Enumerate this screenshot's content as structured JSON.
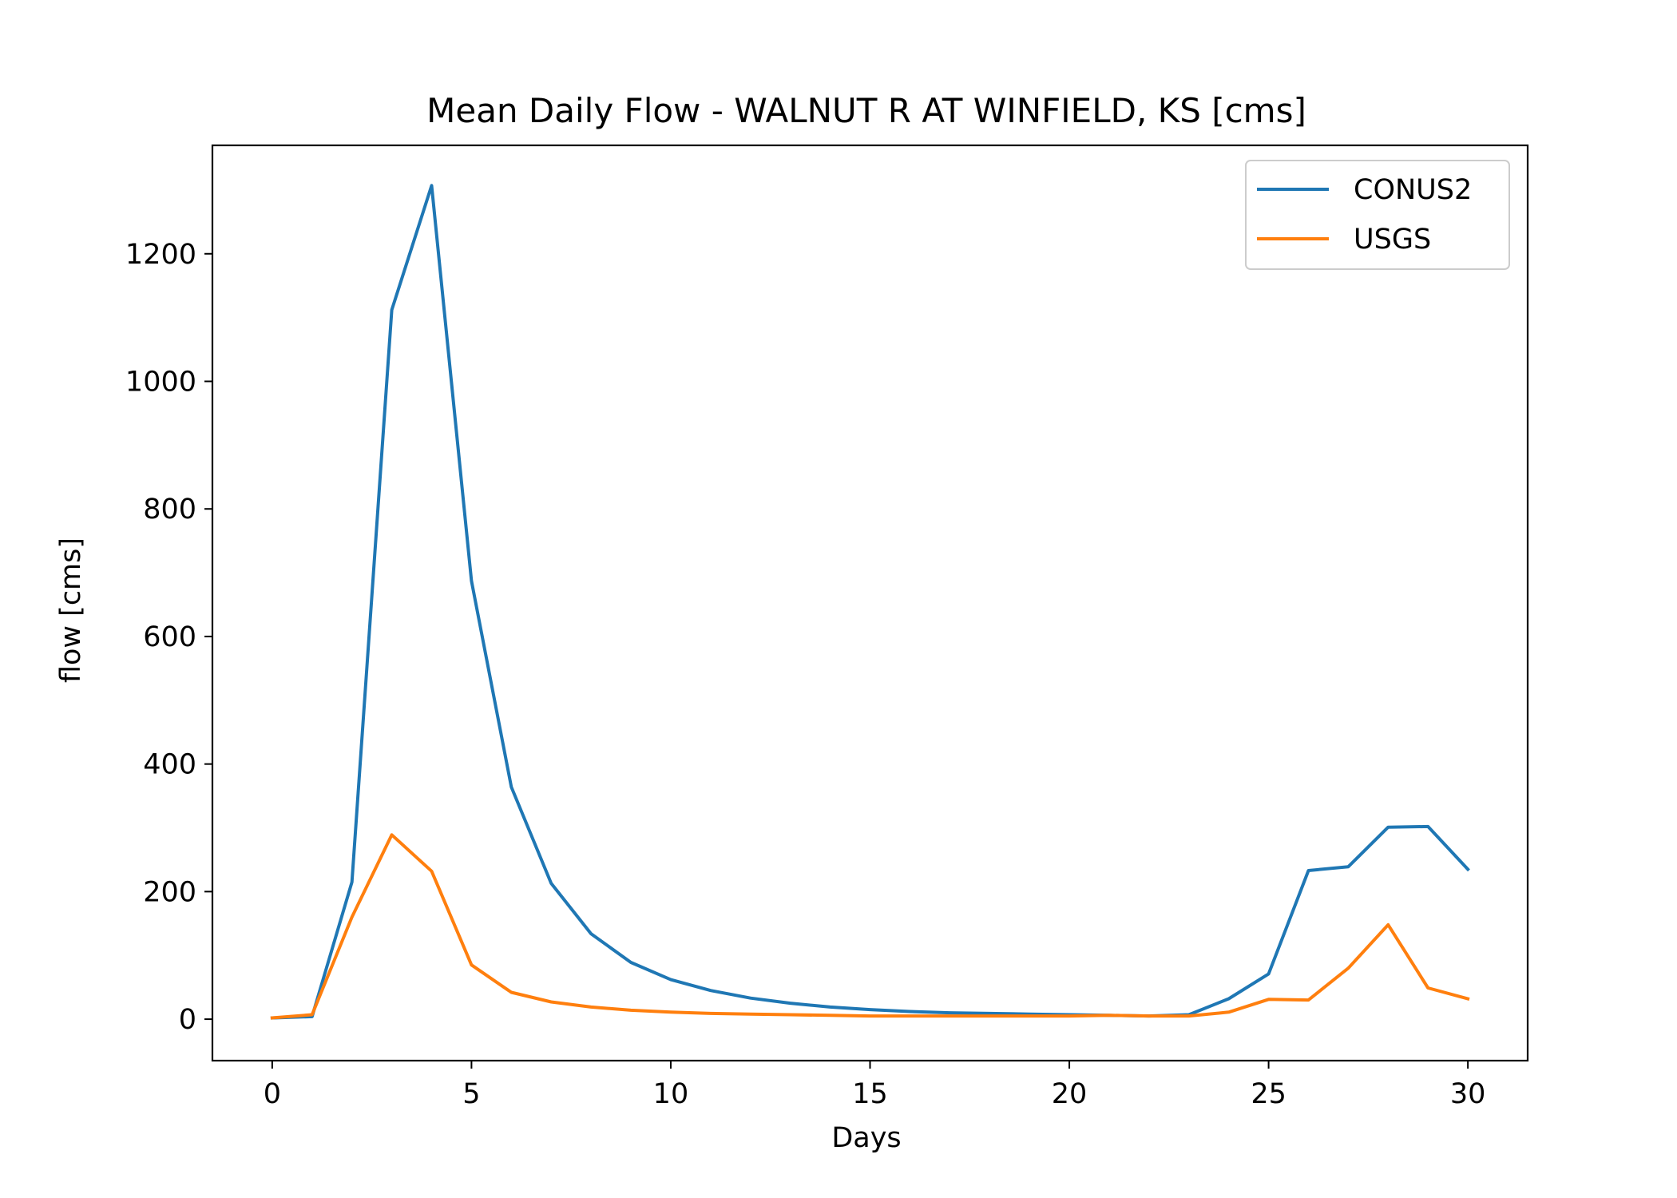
{
  "chart_data": {
    "type": "line",
    "title": "Mean Daily Flow - WALNUT R AT WINFIELD, KS [cms]",
    "xlabel": "Days",
    "ylabel": "flow [cms]",
    "xlim": [
      -1.5,
      31.5
    ],
    "ylim": [
      -65,
      1370
    ],
    "xticks": [
      0,
      5,
      10,
      15,
      20,
      25,
      30
    ],
    "yticks": [
      0,
      200,
      400,
      600,
      800,
      1000,
      1200
    ],
    "x": [
      0,
      1,
      2,
      3,
      4,
      5,
      6,
      7,
      8,
      9,
      10,
      11,
      12,
      13,
      14,
      15,
      16,
      17,
      18,
      19,
      20,
      21,
      22,
      23,
      24,
      25,
      26,
      27,
      28,
      29,
      30
    ],
    "series": [
      {
        "name": "CONUS2",
        "color": "#1f77b4",
        "values": [
          2,
          4,
          215,
          1112,
          1307,
          687,
          364,
          213,
          134,
          89,
          62,
          45,
          33,
          25,
          19,
          15,
          12,
          10,
          9,
          8,
          7,
          6,
          5,
          7,
          32,
          71,
          233,
          239,
          301,
          302,
          235
        ]
      },
      {
        "name": "USGS",
        "color": "#ff7f0e",
        "values": [
          2,
          7,
          160,
          289,
          232,
          85,
          42,
          27,
          19,
          14,
          11,
          9,
          8,
          7,
          6,
          5,
          5,
          5,
          5,
          5,
          5,
          6,
          5,
          5,
          11,
          31,
          30,
          80,
          148,
          49,
          32
        ]
      }
    ],
    "grid": false,
    "legend_position": "top-right"
  }
}
